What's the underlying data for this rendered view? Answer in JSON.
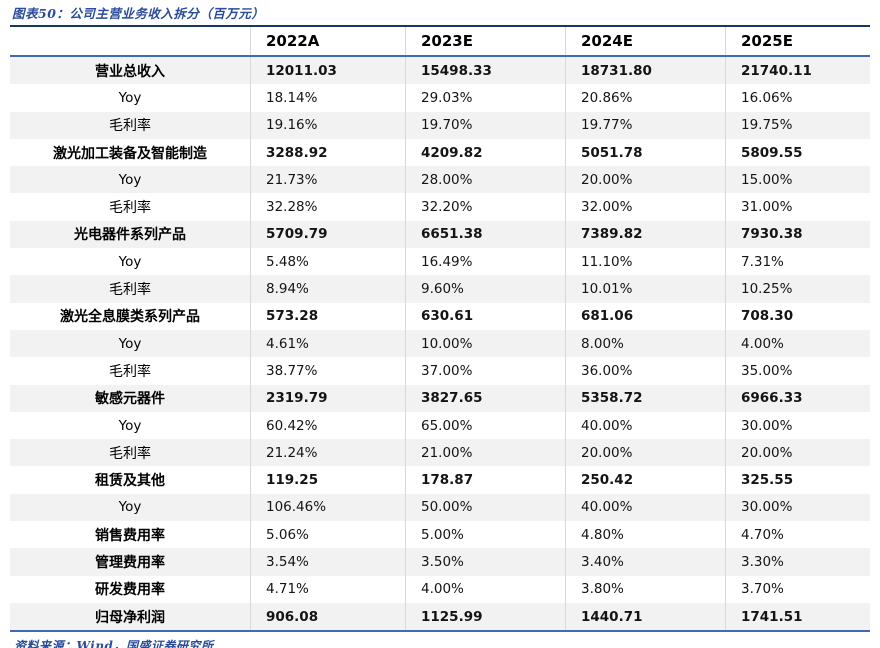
{
  "figure": {
    "title": "图表50：公司主营业务收入拆分（百万元）",
    "source": "资料来源：Wind，国盛证券研究所"
  },
  "colors": {
    "title_blue": "#2a4b9b",
    "top_rule_navy": "#17375e",
    "header_rule_blue": "#3f6ab5",
    "stripe_gray": "#f2f2f2",
    "column_separator": "#d9d9d9"
  },
  "table": {
    "columns": [
      "2022A",
      "2023E",
      "2024E",
      "2025E"
    ],
    "rows": [
      {
        "label": "营业总收入",
        "values": [
          "12011.03",
          "15498.33",
          "18731.80",
          "21740.11"
        ],
        "label_bold": true,
        "values_bold": true
      },
      {
        "label": "Yoy",
        "values": [
          "18.14%",
          "29.03%",
          "20.86%",
          "16.06%"
        ],
        "label_bold": false,
        "values_bold": false
      },
      {
        "label": "毛利率",
        "values": [
          "19.16%",
          "19.70%",
          "19.77%",
          "19.75%"
        ],
        "label_bold": false,
        "values_bold": false
      },
      {
        "label": "激光加工装备及智能制造",
        "values": [
          "3288.92",
          "4209.82",
          "5051.78",
          "5809.55"
        ],
        "label_bold": true,
        "values_bold": true
      },
      {
        "label": "Yoy",
        "values": [
          "21.73%",
          "28.00%",
          "20.00%",
          "15.00%"
        ],
        "label_bold": false,
        "values_bold": false
      },
      {
        "label": "毛利率",
        "values": [
          "32.28%",
          "32.20%",
          "32.00%",
          "31.00%"
        ],
        "label_bold": false,
        "values_bold": false
      },
      {
        "label": "光电器件系列产品",
        "values": [
          "5709.79",
          "6651.38",
          "7389.82",
          "7930.38"
        ],
        "label_bold": true,
        "values_bold": true
      },
      {
        "label": "Yoy",
        "values": [
          "5.48%",
          "16.49%",
          "11.10%",
          "7.31%"
        ],
        "label_bold": false,
        "values_bold": false
      },
      {
        "label": "毛利率",
        "values": [
          "8.94%",
          "9.60%",
          "10.01%",
          "10.25%"
        ],
        "label_bold": false,
        "values_bold": false
      },
      {
        "label": "激光全息膜类系列产品",
        "values": [
          "573.28",
          "630.61",
          "681.06",
          "708.30"
        ],
        "label_bold": true,
        "values_bold": true
      },
      {
        "label": "Yoy",
        "values": [
          "4.61%",
          "10.00%",
          "8.00%",
          "4.00%"
        ],
        "label_bold": false,
        "values_bold": false
      },
      {
        "label": "毛利率",
        "values": [
          "38.77%",
          "37.00%",
          "36.00%",
          "35.00%"
        ],
        "label_bold": false,
        "values_bold": false
      },
      {
        "label": "敏感元器件",
        "values": [
          "2319.79",
          "3827.65",
          "5358.72",
          "6966.33"
        ],
        "label_bold": true,
        "values_bold": true
      },
      {
        "label": "Yoy",
        "values": [
          "60.42%",
          "65.00%",
          "40.00%",
          "30.00%"
        ],
        "label_bold": false,
        "values_bold": false
      },
      {
        "label": "毛利率",
        "values": [
          "21.24%",
          "21.00%",
          "20.00%",
          "20.00%"
        ],
        "label_bold": false,
        "values_bold": false
      },
      {
        "label": "租赁及其他",
        "values": [
          "119.25",
          "178.87",
          "250.42",
          "325.55"
        ],
        "label_bold": true,
        "values_bold": true
      },
      {
        "label": "Yoy",
        "values": [
          "106.46%",
          "50.00%",
          "40.00%",
          "30.00%"
        ],
        "label_bold": false,
        "values_bold": false
      },
      {
        "label": "销售费用率",
        "values": [
          "5.06%",
          "5.00%",
          "4.80%",
          "4.70%"
        ],
        "label_bold": true,
        "values_bold": false
      },
      {
        "label": "管理费用率",
        "values": [
          "3.54%",
          "3.50%",
          "3.40%",
          "3.30%"
        ],
        "label_bold": true,
        "values_bold": false
      },
      {
        "label": "研发费用率",
        "values": [
          "4.71%",
          "4.00%",
          "3.80%",
          "3.70%"
        ],
        "label_bold": true,
        "values_bold": false
      },
      {
        "label": "归母净利润",
        "values": [
          "906.08",
          "1125.99",
          "1440.71",
          "1741.51"
        ],
        "label_bold": true,
        "values_bold": true
      }
    ]
  }
}
